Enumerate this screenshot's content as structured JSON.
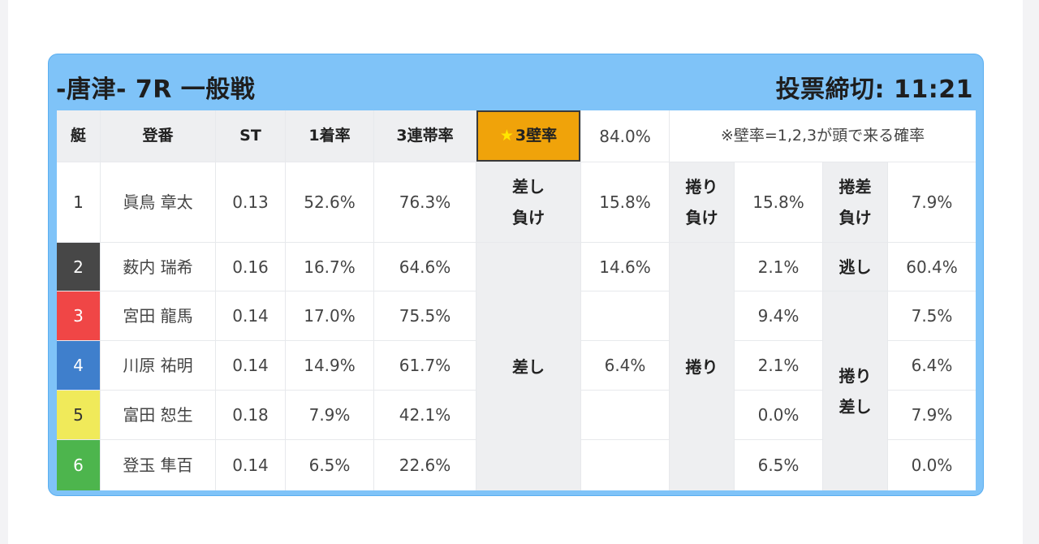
{
  "race": {
    "title": "-唐津- 7R 一般戦",
    "deadline": "投票締切: 11:21"
  },
  "header": {
    "lane": "艇",
    "name": "登番",
    "st": "ST",
    "win_rate": "1着率",
    "top3_rate": "3連帯率",
    "wall_label": "3壁率",
    "wall_value": "84.0%",
    "note": "※壁率=1,2,3が頭で来る確率"
  },
  "racers": [
    {
      "lane": "1",
      "name": "眞鳥 章太",
      "st": "0.13",
      "win_rate": "52.6%",
      "top3_rate": "76.3%"
    },
    {
      "lane": "2",
      "name": "薮内 瑞希",
      "st": "0.16",
      "win_rate": "16.7%",
      "top3_rate": "64.6%"
    },
    {
      "lane": "3",
      "name": "宮田 龍馬",
      "st": "0.14",
      "win_rate": "17.0%",
      "top3_rate": "75.5%"
    },
    {
      "lane": "4",
      "name": "川原 祐明",
      "st": "0.14",
      "win_rate": "14.9%",
      "top3_rate": "61.7%"
    },
    {
      "lane": "5",
      "name": "富田 恕生",
      "st": "0.18",
      "win_rate": "7.9%",
      "top3_rate": "42.1%"
    },
    {
      "lane": "6",
      "name": "登玉 隼百",
      "st": "0.14",
      "win_rate": "6.5%",
      "top3_rate": "22.6%"
    }
  ],
  "kimarite": {
    "sashi_make_line1": "差し",
    "sashi_make_line2": "負け",
    "sashi_make_value": "15.8%",
    "makuri_make_line1": "捲り",
    "makuri_make_line2": "負け",
    "makuri_make_value": "15.8%",
    "makurisashi_make_line1": "捲差",
    "makurisashi_make_line2": "負け",
    "makurisashi_make_value": "7.9%",
    "sashi": "差し",
    "sashi_values": [
      "14.6%",
      "",
      "6.4%",
      "",
      ""
    ],
    "makuri": "捲り",
    "makuri_values": [
      "2.1%",
      "9.4%",
      "2.1%",
      "0.0%",
      "6.5%"
    ],
    "nige": "逃し",
    "nige_value": "60.4%",
    "makurisashi_line1": "捲り",
    "makurisashi_line2": "差し",
    "makurisashi_values": [
      "7.5%",
      "6.4%",
      "7.9%",
      "0.0%"
    ]
  }
}
